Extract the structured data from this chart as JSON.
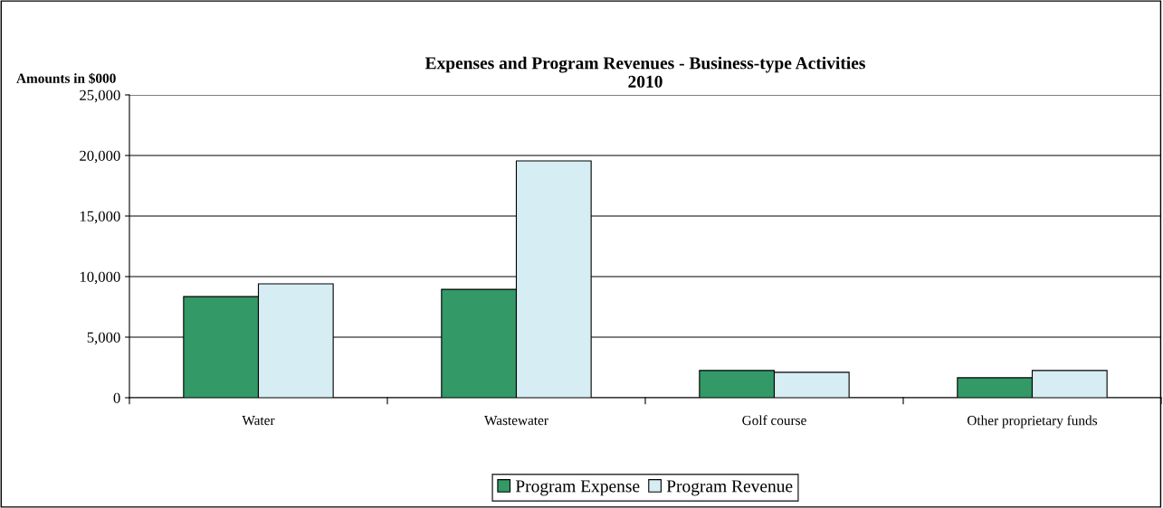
{
  "chart_data": {
    "type": "bar",
    "title": "Expenses and Program Revenues - Business-type Activities\n2010",
    "ylabel": "Amounts in $000",
    "categories": [
      "Water",
      "Wastewater",
      "Golf course",
      "Other proprietary funds"
    ],
    "series": [
      {
        "name": "Program Expense",
        "color": "#339966",
        "values": [
          8350,
          8950,
          2250,
          1650
        ]
      },
      {
        "name": "Program Revenue",
        "color": "#d6edf3",
        "values": [
          9400,
          19550,
          2100,
          2250
        ]
      }
    ],
    "ylim": [
      0,
      25000
    ],
    "yticks": [
      {
        "value": 0,
        "label": "0"
      },
      {
        "value": 5000,
        "label": "5,000"
      },
      {
        "value": 10000,
        "label": "10,000"
      },
      {
        "value": 15000,
        "label": "15,000"
      },
      {
        "value": 20000,
        "label": "20,000"
      },
      {
        "value": 25000,
        "label": "25,000"
      }
    ],
    "grid": "y",
    "legend": "bottom"
  }
}
